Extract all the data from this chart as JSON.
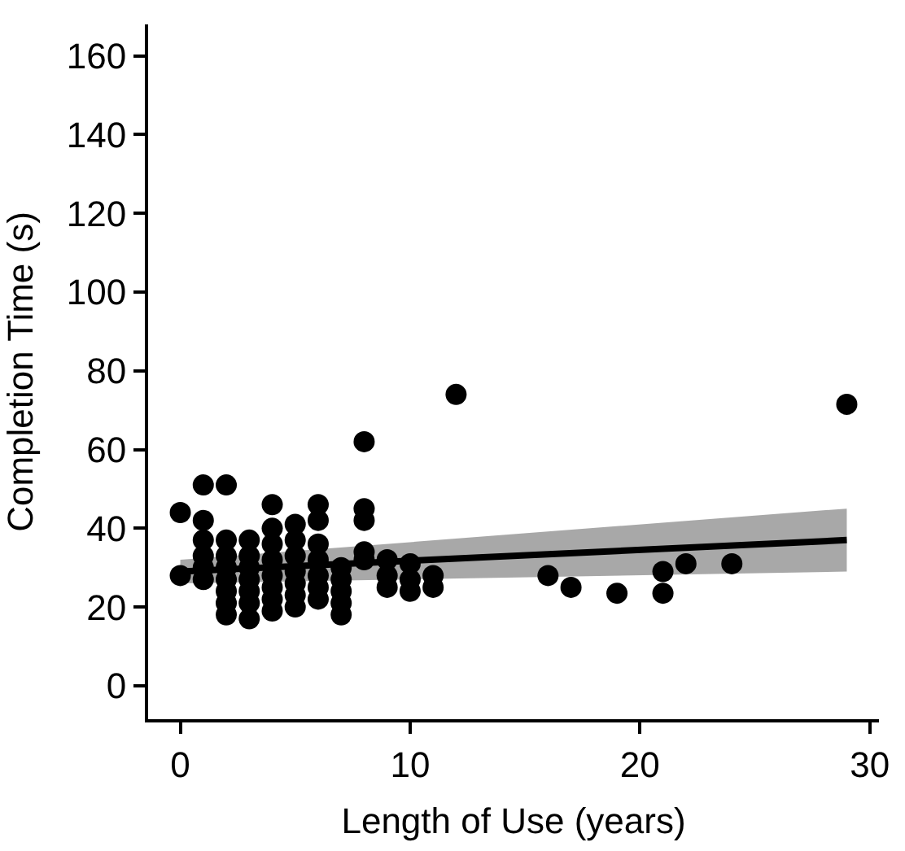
{
  "chart_data": {
    "type": "scatter",
    "xlabel": "Length of Use (years)",
    "ylabel": "Completion Time (s)",
    "xlim": [
      -1.4,
      30.4
    ],
    "xticks": [
      0,
      10,
      20,
      30
    ],
    "ylim": [
      -8.5,
      168
    ],
    "yticks": [
      0,
      20,
      40,
      60,
      80,
      100,
      120,
      140,
      160
    ],
    "series": [
      {
        "marker": "circle",
        "color": "#000000",
        "x": [
          0,
          0,
          1,
          1,
          1,
          1,
          1,
          1,
          2,
          2,
          2,
          2,
          2,
          2,
          2,
          2,
          3,
          3,
          3,
          3,
          3,
          3,
          3,
          4,
          4,
          4,
          4,
          4,
          4,
          4,
          4,
          5,
          5,
          5,
          5,
          5,
          5,
          5,
          6,
          6,
          6,
          6,
          6,
          6,
          6,
          7,
          7,
          7,
          7,
          7,
          8,
          8,
          8,
          8,
          8,
          9,
          9,
          9,
          10,
          10,
          10,
          11,
          11,
          12,
          16,
          17,
          19,
          21,
          21,
          22,
          24,
          29
        ],
        "values": [
          44,
          28,
          51,
          42,
          37,
          33,
          30,
          27,
          51,
          37,
          33,
          30,
          27,
          24,
          21,
          18,
          37,
          33,
          30,
          27,
          24,
          21,
          17,
          46,
          40,
          36,
          32,
          28,
          25,
          22,
          19,
          41,
          37,
          33,
          29,
          26,
          23,
          20,
          46,
          42,
          36,
          32,
          28,
          25,
          22,
          30,
          27,
          24,
          21,
          18,
          62,
          45,
          42,
          34,
          32,
          32,
          28,
          25,
          31,
          27,
          24,
          28,
          25,
          74,
          28,
          25,
          23.5,
          29,
          23.5,
          31,
          31,
          71.5
        ]
      },
      {
        "type": "line",
        "marker": "none",
        "color": "#000000",
        "x": [
          0,
          29
        ],
        "values": [
          29,
          37
        ],
        "lower": [
          26,
          29
        ],
        "upper": [
          32,
          45
        ]
      }
    ]
  }
}
